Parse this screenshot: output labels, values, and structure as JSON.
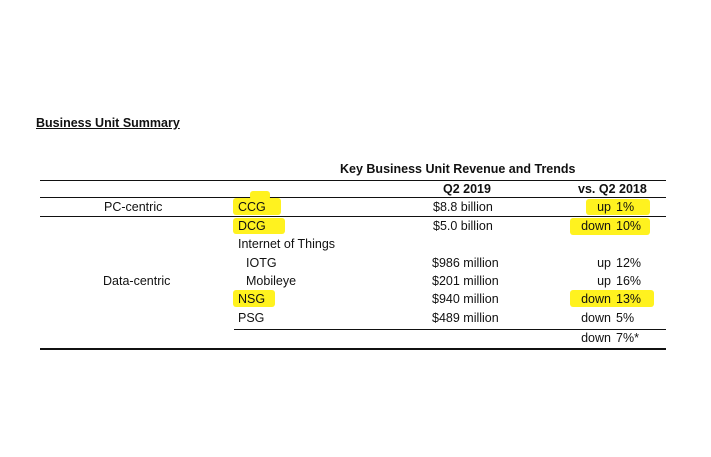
{
  "section_title": "Business Unit Summary",
  "table": {
    "caption": "Key Business Unit Revenue and Trends",
    "col_q2": "Q2 2019",
    "col_vs": "vs. Q2 2018",
    "groups": {
      "pc": "PC-centric",
      "data": "Data-centric"
    },
    "rows": [
      {
        "unit": "CCG",
        "revenue": "$8.8 billion",
        "dir": "up",
        "pct": "1%"
      },
      {
        "unit": "DCG",
        "revenue": "$5.0 billion",
        "dir": "down",
        "pct": "10%"
      },
      {
        "unit": "Internet of Things"
      },
      {
        "unit": "IOTG",
        "revenue": "$986 million",
        "dir": "up",
        "pct": "12%"
      },
      {
        "unit": "Mobileye",
        "revenue": "$201 million",
        "dir": "up",
        "pct": "16%"
      },
      {
        "unit": "NSG",
        "revenue": "$940 million",
        "dir": "down",
        "pct": "13%"
      },
      {
        "unit": "PSG",
        "revenue": "$489 million",
        "dir": "down",
        "pct": "5%"
      }
    ],
    "total": {
      "dir": "down",
      "pct": "7%*"
    }
  },
  "colors": {
    "highlight": "#fff21f"
  }
}
